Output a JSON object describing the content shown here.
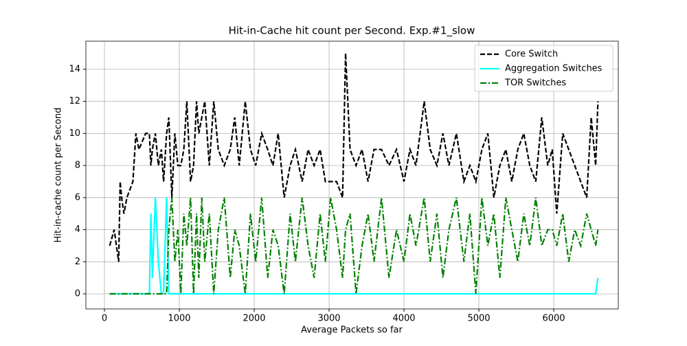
{
  "chart_data": {
    "type": "line",
    "title": "Hit-in-Cache hit count per Second. Exp.#1_slow",
    "xlabel": "Average Packets so far",
    "ylabel": "Hit-in-cache count per Second",
    "x": [
      70,
      130,
      190,
      210,
      230,
      260,
      300,
      380,
      420,
      460,
      550,
      600,
      620,
      640,
      680,
      720,
      760,
      790,
      830,
      860,
      900,
      940,
      980,
      1020,
      1060,
      1100,
      1150,
      1190,
      1230,
      1260,
      1300,
      1340,
      1400,
      1460,
      1520,
      1600,
      1680,
      1740,
      1800,
      1880,
      1950,
      2020,
      2100,
      2180,
      2250,
      2320,
      2400,
      2480,
      2550,
      2640,
      2720,
      2800,
      2880,
      2950,
      3020,
      3100,
      3180,
      3220,
      3280,
      3360,
      3440,
      3520,
      3600,
      3700,
      3800,
      3900,
      4000,
      4080,
      4160,
      4270,
      4350,
      4440,
      4520,
      4600,
      4700,
      4800,
      4880,
      4960,
      5040,
      5120,
      5200,
      5280,
      5360,
      5440,
      5520,
      5600,
      5680,
      5760,
      5840,
      5920,
      5980,
      6040,
      6120,
      6200,
      6280,
      6360,
      6440,
      6500,
      6560,
      6590
    ],
    "series": [
      {
        "name": "Core Switch",
        "color": "#000000",
        "dash": "dashed",
        "values": [
          3,
          4,
          2,
          7,
          6,
          5,
          6,
          7,
          10,
          9,
          10,
          10,
          8,
          9,
          10,
          8,
          9,
          7,
          10,
          11,
          6,
          10,
          8,
          8,
          9,
          12,
          7,
          8,
          12,
          10,
          11,
          12,
          8,
          12,
          9,
          8,
          9,
          11,
          8,
          12,
          9,
          8,
          10,
          9,
          8,
          10,
          6,
          8,
          9,
          7,
          9,
          8,
          9,
          7,
          7,
          7,
          6,
          15,
          9,
          8,
          9,
          7,
          9,
          9,
          8,
          9,
          7,
          9,
          8,
          12,
          9,
          8,
          10,
          8,
          10,
          7,
          8,
          7,
          9,
          10,
          6,
          8,
          9,
          7,
          9,
          10,
          8,
          7,
          11,
          8,
          9,
          5,
          10,
          9,
          8,
          7,
          6,
          11,
          8,
          12
        ]
      },
      {
        "name": "Aggregation Switches",
        "color": "#00ffff",
        "dash": "solid",
        "values": [
          0,
          0,
          0,
          0,
          0,
          0,
          0,
          0,
          0,
          0,
          0,
          0,
          5,
          1,
          6,
          2,
          0,
          0,
          6,
          0,
          0,
          0,
          0,
          0,
          0,
          0,
          0,
          0,
          0,
          0,
          0,
          0,
          0,
          0,
          0,
          0,
          0,
          0,
          0,
          0,
          0,
          0,
          0,
          0,
          0,
          0,
          0,
          0,
          0,
          0,
          0,
          0,
          0,
          0,
          0,
          0,
          0,
          0,
          0,
          0,
          0,
          0,
          0,
          0,
          0,
          0,
          0,
          0,
          0,
          0,
          0,
          0,
          0,
          0,
          0,
          0,
          0,
          0,
          0,
          0,
          0,
          0,
          0,
          0,
          0,
          0,
          0,
          0,
          0,
          0,
          0,
          0,
          0,
          0,
          0,
          0,
          0,
          0,
          0,
          1
        ]
      },
      {
        "name": "TOR Switches",
        "color": "#008000",
        "dash": "dashdot",
        "values": [
          0,
          0,
          0,
          0,
          0,
          0,
          0,
          0,
          0,
          0,
          0,
          0,
          0,
          0,
          0,
          0,
          0,
          0,
          0,
          4,
          6,
          2,
          4,
          0,
          5,
          3,
          6,
          0,
          5,
          1,
          6,
          2,
          5,
          0,
          4,
          6,
          1,
          4,
          3,
          0,
          5,
          2,
          6,
          1,
          4,
          3,
          0,
          5,
          2,
          6,
          3,
          1,
          5,
          2,
          6,
          4,
          1,
          4,
          5,
          0,
          3,
          5,
          2,
          6,
          1,
          4,
          2,
          5,
          3,
          6,
          2,
          5,
          1,
          4,
          6,
          2,
          5,
          0,
          6,
          3,
          5,
          1,
          6,
          4,
          2,
          5,
          3,
          6,
          3,
          4,
          4,
          3,
          5,
          2,
          4,
          3,
          5,
          4,
          3,
          4
        ]
      }
    ],
    "xlim": [
      -248,
      6862
    ],
    "ylim": [
      -0.94,
      15.75
    ],
    "xticks": [
      0,
      1000,
      2000,
      3000,
      4000,
      5000,
      6000
    ],
    "yticks": [
      0,
      2,
      4,
      6,
      8,
      10,
      12,
      14
    ],
    "grid": true,
    "legend": "upper right"
  }
}
